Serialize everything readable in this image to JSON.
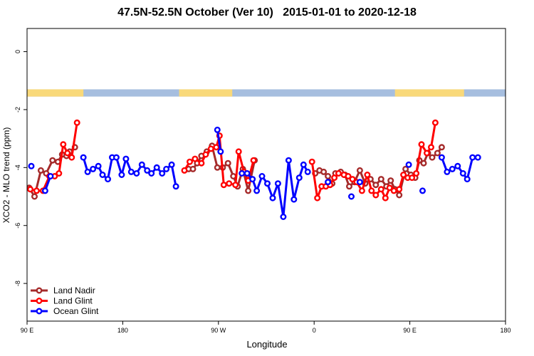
{
  "chart_data": {
    "type": "line",
    "title": "47.5N-52.5N October (Ver 10)   2015-01-01 to 2020-12-18",
    "xlabel": "Longitude",
    "ylabel": "XCO2 - MLO trend (ppm)",
    "x_ticks": [
      {
        "value": 90,
        "label": "90 E"
      },
      {
        "value": 180,
        "label": "180"
      },
      {
        "value": 270,
        "label": "90 W"
      },
      {
        "value": 360,
        "label": "0"
      },
      {
        "value": 450,
        "label": "90 E"
      },
      {
        "value": 540,
        "label": "180"
      }
    ],
    "y_ticks": [
      {
        "value": 0,
        "label": "0"
      },
      {
        "value": -2,
        "label": "-2"
      },
      {
        "value": -4,
        "label": "-4"
      },
      {
        "value": -6,
        "label": "-6"
      },
      {
        "value": -8,
        "label": "-8"
      }
    ],
    "xlim": [
      90,
      540
    ],
    "ylim": [
      -9.3,
      0.8
    ],
    "grid": false,
    "legend_position": "bottom-left",
    "land_ocean_band": {
      "y_range": [
        -1.55,
        -1.3
      ],
      "land_color": "#f9d97a",
      "ocean_color": "#a6bedf",
      "land_segments": [
        [
          90,
          143
        ],
        [
          233,
          283
        ],
        [
          436,
          501
        ]
      ]
    },
    "series": [
      {
        "name": "Land Nadir",
        "color": "#a52a2a",
        "segments": [
          [
            [
              92,
              -4.7
            ],
            [
              97,
              -5.0
            ],
            [
              103,
              -4.1
            ],
            [
              108,
              -4.2
            ],
            [
              114,
              -3.75
            ],
            [
              119,
              -3.8
            ],
            [
              123,
              -3.55
            ],
            [
              127,
              -3.6
            ],
            [
              130,
              -3.45
            ],
            [
              135,
              -3.3
            ]
          ],
          [
            [
              242,
              -4.05
            ],
            [
              246,
              -4.05
            ],
            [
              250,
              -3.85
            ],
            [
              254,
              -3.6
            ],
            [
              259,
              -3.45
            ],
            [
              264,
              -3.25
            ],
            [
              269,
              -4.0
            ],
            [
              274,
              -4.0
            ],
            [
              279,
              -3.85
            ],
            [
              284,
              -4.3
            ],
            [
              288,
              -4.65
            ],
            [
              293,
              -4.05
            ],
            [
              298,
              -4.8
            ],
            [
              304,
              -3.75
            ]
          ],
          [
            [
              361,
              -4.2
            ],
            [
              365,
              -4.1
            ],
            [
              369,
              -4.15
            ],
            [
              373,
              -4.3
            ],
            [
              377,
              -4.55
            ],
            [
              380,
              -4.2
            ],
            [
              385,
              -4.15
            ],
            [
              389,
              -4.25
            ],
            [
              393,
              -4.65
            ],
            [
              398,
              -4.5
            ],
            [
              403,
              -4.1
            ],
            [
              408,
              -4.55
            ],
            [
              413,
              -4.4
            ],
            [
              418,
              -4.6
            ],
            [
              423,
              -4.4
            ],
            [
              428,
              -4.65
            ],
            [
              432,
              -4.45
            ],
            [
              436,
              -4.75
            ],
            [
              440,
              -4.95
            ],
            [
              446,
              -4.05
            ],
            [
              451,
              -4.25
            ],
            [
              455,
              -4.35
            ],
            [
              459,
              -3.75
            ],
            [
              463,
              -3.85
            ],
            [
              467,
              -3.5
            ],
            [
              471,
              -3.65
            ],
            [
              476,
              -3.5
            ],
            [
              480,
              -3.3
            ]
          ]
        ]
      },
      {
        "name": "Land Glint",
        "color": "#ff0000",
        "segments": [
          [
            [
              93,
              -4.75
            ],
            [
              99,
              -4.8
            ],
            [
              105,
              -4.8
            ],
            [
              111,
              -4.3
            ],
            [
              116,
              -4.3
            ],
            [
              120,
              -4.2
            ],
            [
              124,
              -3.2
            ],
            [
              128,
              -3.5
            ],
            [
              132,
              -3.65
            ],
            [
              137,
              -2.45
            ]
          ],
          [
            [
              238,
              -4.1
            ],
            [
              243,
              -3.8
            ],
            [
              248,
              -3.7
            ],
            [
              254,
              -3.85
            ],
            [
              258,
              -3.55
            ],
            [
              263,
              -3.35
            ],
            [
              268,
              -3.3
            ],
            [
              271,
              -2.9
            ],
            [
              275,
              -4.6
            ],
            [
              280,
              -4.55
            ],
            [
              286,
              -4.6
            ],
            [
              289,
              -3.45
            ],
            [
              294,
              -4.15
            ],
            [
              298,
              -4.45
            ],
            [
              303,
              -3.75
            ]
          ],
          [
            [
              358,
              -3.8
            ],
            [
              363,
              -5.05
            ],
            [
              367,
              -4.65
            ],
            [
              371,
              -4.65
            ],
            [
              375,
              -4.6
            ],
            [
              379,
              -4.35
            ],
            [
              383,
              -4.2
            ],
            [
              388,
              -4.25
            ],
            [
              392,
              -4.3
            ],
            [
              396,
              -4.4
            ],
            [
              400,
              -4.5
            ],
            [
              405,
              -4.8
            ],
            [
              410,
              -4.25
            ],
            [
              414,
              -4.8
            ],
            [
              418,
              -4.95
            ],
            [
              423,
              -4.75
            ],
            [
              427,
              -5.05
            ],
            [
              431,
              -4.7
            ],
            [
              435,
              -4.8
            ],
            [
              440,
              -4.75
            ],
            [
              444,
              -4.25
            ],
            [
              448,
              -4.35
            ],
            [
              452,
              -4.35
            ],
            [
              456,
              -4.2
            ],
            [
              461,
              -3.2
            ],
            [
              466,
              -3.5
            ],
            [
              470,
              -3.3
            ],
            [
              474,
              -2.45
            ]
          ]
        ]
      },
      {
        "name": "Ocean Glint",
        "color": "#0000ff",
        "segments": [
          [
            [
              94,
              -3.95
            ]
          ],
          [
            [
              107,
              -4.8
            ],
            [
              112,
              -4.3
            ]
          ],
          [
            [
              143,
              -3.65
            ],
            [
              147,
              -4.15
            ],
            [
              152,
              -4.05
            ],
            [
              157,
              -3.95
            ],
            [
              161,
              -4.25
            ],
            [
              166,
              -4.4
            ],
            [
              170,
              -3.65
            ],
            [
              174,
              -3.65
            ],
            [
              179,
              -4.25
            ],
            [
              183,
              -3.7
            ],
            [
              188,
              -4.15
            ],
            [
              193,
              -4.2
            ],
            [
              198,
              -3.9
            ],
            [
              203,
              -4.1
            ],
            [
              207,
              -4.2
            ],
            [
              212,
              -4.0
            ],
            [
              217,
              -4.2
            ],
            [
              221,
              -4.05
            ],
            [
              226,
              -3.9
            ],
            [
              230,
              -4.65
            ]
          ],
          [
            [
              269,
              -2.7
            ],
            [
              272,
              -3.45
            ]
          ],
          [
            [
              292,
              -4.2
            ],
            [
              297,
              -4.2
            ],
            [
              302,
              -4.4
            ],
            [
              306,
              -4.8
            ],
            [
              311,
              -4.3
            ],
            [
              316,
              -4.55
            ],
            [
              321,
              -5.05
            ],
            [
              326,
              -4.55
            ],
            [
              331,
              -5.7
            ],
            [
              336,
              -3.75
            ],
            [
              341,
              -5.1
            ],
            [
              346,
              -4.35
            ],
            [
              350,
              -3.9
            ],
            [
              354,
              -4.15
            ]
          ],
          [
            [
              373,
              -4.5
            ]
          ],
          [
            [
              395,
              -5.0
            ]
          ],
          [
            [
              403,
              -4.5
            ]
          ],
          [
            [
              449,
              -3.9
            ]
          ],
          [
            [
              462,
              -4.8
            ]
          ],
          [
            [
              480,
              -3.65
            ],
            [
              485,
              -4.15
            ],
            [
              490,
              -4.05
            ],
            [
              495,
              -3.95
            ],
            [
              500,
              -4.2
            ],
            [
              504,
              -4.4
            ],
            [
              509,
              -3.65
            ],
            [
              514,
              -3.65
            ]
          ]
        ]
      }
    ]
  }
}
